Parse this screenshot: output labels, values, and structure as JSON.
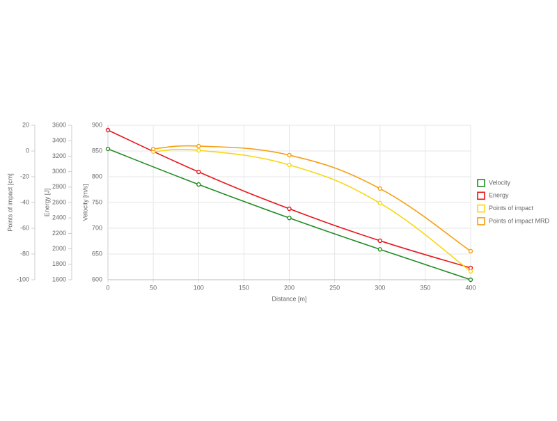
{
  "chart_data": {
    "type": "line",
    "x_label": "Distance [m]",
    "y_label": "Velocity [m/s]",
    "y2_label": "Energy [J]",
    "y3_label": "Points of impact [cm]",
    "xlim": [
      0,
      400
    ],
    "xticks": [
      0,
      50,
      100,
      150,
      200,
      250,
      300,
      350,
      400
    ],
    "ylim": [
      600,
      900
    ],
    "yticks": [
      600,
      650,
      700,
      750,
      800,
      850,
      900
    ],
    "y2lim": [
      1600,
      3600
    ],
    "y2ticks": [
      1600,
      1800,
      2000,
      2200,
      2400,
      2600,
      2800,
      3000,
      3200,
      3400,
      3600
    ],
    "y3lim": [
      -100,
      20
    ],
    "y3ticks": [
      -100,
      -80,
      -60,
      -40,
      -20,
      0,
      20
    ],
    "grid": true,
    "legend": "right",
    "series": [
      {
        "name": "Velocity",
        "color": "#228b22",
        "axis": "y",
        "x": [
          0,
          100,
          200,
          300,
          400
        ],
        "values": [
          854,
          785,
          720,
          659,
          600
        ]
      },
      {
        "name": "Energy",
        "color": "#e8141a",
        "axis": "y2",
        "x": [
          0,
          100,
          200,
          300,
          400
        ],
        "values": [
          3537,
          2996,
          2519,
          2105,
          1753
        ]
      },
      {
        "name": "Points of impact",
        "color": "#f5d80f",
        "axis": "y3",
        "x": [
          50,
          100,
          200,
          300,
          400
        ],
        "values": [
          -0.5,
          0.5,
          -10.8,
          -40.5,
          -93.5
        ]
      },
      {
        "name": "Points of impact MRD",
        "color": "#f5a011",
        "axis": "y3",
        "x": [
          50,
          100,
          200,
          300,
          400
        ],
        "values": [
          1.6,
          3.8,
          -3.2,
          -29.2,
          -77.8
        ]
      }
    ]
  }
}
